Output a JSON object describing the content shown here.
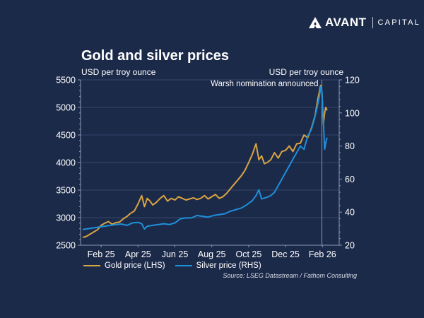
{
  "brand": {
    "name": "AVANT",
    "suffix": "CAPITAL"
  },
  "colors": {
    "background": "#1c2a4a",
    "gold": "#d9a441",
    "silver": "#1e8fd9",
    "grid": "#34446a",
    "axis": "#8d98b0",
    "event_line": "#8d98b0"
  },
  "chart_data": {
    "type": "line",
    "title": "Gold and silver prices",
    "ylabel_left": "USD per troy ounce",
    "ylabel_right": "USD per troy ounce",
    "source": "Source: LSEG Datastream / Fathom Consulting",
    "x_tick_labels": [
      "Feb 25",
      "Apr 25",
      "Jun 25",
      "Aug 25",
      "Oct 25",
      "Dec 25",
      "Feb 26"
    ],
    "x_tick_months": [
      1,
      3,
      5,
      7,
      9,
      11,
      13
    ],
    "x_range_months": [
      -0.1,
      13.3
    ],
    "ylim_left": [
      2500,
      5500
    ],
    "yticks_left": [
      2500,
      3000,
      3500,
      4000,
      4500,
      5000,
      5500
    ],
    "ylim_right": [
      20,
      120
    ],
    "yticks_right": [
      20,
      40,
      60,
      80,
      100,
      120
    ],
    "grid": true,
    "legend_placement": "bottom-left",
    "annotation": {
      "label": "Warsh nomination announced",
      "x_month": 12.97
    },
    "series": [
      {
        "name": "Gold price (LHS)",
        "axis": "left",
        "x": [
          0,
          0.2,
          0.4,
          0.6,
          0.8,
          1.0,
          1.2,
          1.4,
          1.6,
          1.8,
          2.0,
          2.2,
          2.4,
          2.6,
          2.8,
          3.0,
          3.2,
          3.35,
          3.5,
          3.65,
          3.8,
          4.0,
          4.2,
          4.4,
          4.6,
          4.8,
          5.0,
          5.2,
          5.4,
          5.6,
          5.8,
          6.0,
          6.2,
          6.4,
          6.6,
          6.8,
          7.0,
          7.2,
          7.4,
          7.6,
          7.8,
          8.0,
          8.2,
          8.4,
          8.6,
          8.8,
          9.0,
          9.2,
          9.4,
          9.55,
          9.7,
          9.85,
          10.0,
          10.2,
          10.4,
          10.6,
          10.8,
          11.0,
          11.2,
          11.4,
          11.6,
          11.8,
          12.0,
          12.2,
          12.4,
          12.6,
          12.75,
          12.9,
          12.97,
          13.05,
          13.12,
          13.18,
          13.25
        ],
        "values": [
          2640,
          2660,
          2700,
          2740,
          2780,
          2860,
          2900,
          2930,
          2880,
          2910,
          2920,
          2980,
          3020,
          3080,
          3120,
          3250,
          3400,
          3200,
          3350,
          3300,
          3230,
          3280,
          3350,
          3400,
          3300,
          3350,
          3320,
          3380,
          3350,
          3320,
          3340,
          3360,
          3330,
          3350,
          3400,
          3340,
          3380,
          3420,
          3350,
          3380,
          3440,
          3520,
          3600,
          3680,
          3760,
          3860,
          4000,
          4150,
          4340,
          4050,
          4120,
          3980,
          4000,
          4050,
          4180,
          4080,
          4200,
          4220,
          4300,
          4200,
          4340,
          4350,
          4500,
          4450,
          4620,
          4850,
          5150,
          5400,
          5300,
          4700,
          4900,
          5000,
          4950
        ]
      },
      {
        "name": "Silver price (RHS)",
        "axis": "right",
        "x": [
          0,
          0.3,
          0.6,
          0.9,
          1.2,
          1.5,
          1.8,
          2.1,
          2.4,
          2.7,
          3.0,
          3.2,
          3.35,
          3.5,
          3.8,
          4.1,
          4.4,
          4.7,
          5.0,
          5.3,
          5.6,
          5.9,
          6.2,
          6.5,
          6.8,
          7.1,
          7.4,
          7.7,
          8.0,
          8.3,
          8.6,
          8.9,
          9.2,
          9.4,
          9.55,
          9.7,
          9.85,
          10.0,
          10.2,
          10.4,
          10.6,
          10.8,
          11.0,
          11.2,
          11.4,
          11.6,
          11.8,
          12.0,
          12.2,
          12.4,
          12.6,
          12.8,
          12.92,
          12.97,
          13.05,
          13.12,
          13.2,
          13.25
        ],
        "values": [
          29.5,
          30.0,
          30.5,
          31.0,
          31.5,
          32.0,
          32.5,
          32.8,
          32.0,
          33.5,
          33.8,
          33.0,
          29.8,
          31.5,
          32.0,
          32.5,
          33.0,
          32.5,
          33.5,
          36.0,
          36.5,
          36.5,
          38.0,
          37.5,
          37.0,
          38.0,
          38.5,
          39.0,
          40.5,
          41.5,
          42.5,
          44.5,
          47.0,
          50.0,
          53.5,
          48.0,
          48.5,
          49.0,
          50.0,
          52.0,
          56.0,
          60.0,
          64.0,
          68.0,
          72.0,
          76.0,
          80.0,
          78.0,
          86.0,
          90.0,
          98.0,
          108.0,
          116.0,
          113.0,
          95.0,
          78.0,
          83.0,
          85.0
        ]
      }
    ]
  }
}
